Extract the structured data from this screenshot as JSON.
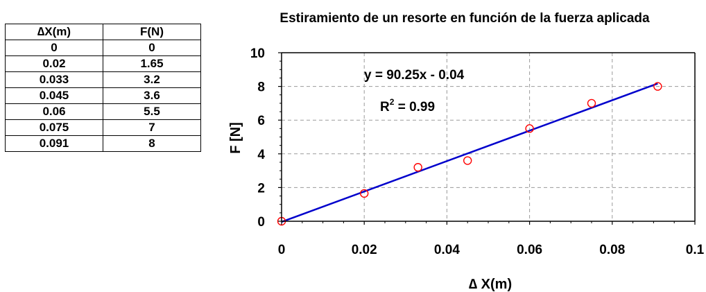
{
  "table": {
    "headers": [
      "∆X(m)",
      "F(N)"
    ],
    "rows": [
      [
        "0",
        "0"
      ],
      [
        "0.02",
        "1.65"
      ],
      [
        "0.033",
        "3.2"
      ],
      [
        "0.045",
        "3.6"
      ],
      [
        "0.06",
        "5.5"
      ],
      [
        "0.075",
        "7"
      ],
      [
        "0.091",
        "8"
      ]
    ]
  },
  "chart_data": {
    "type": "scatter",
    "title": "Estiramiento de un resorte en función de la fuerza aplicada",
    "xlabel": "∆ X(m)",
    "ylabel": "F [N]",
    "xlim": [
      0,
      0.1
    ],
    "ylim": [
      0,
      10
    ],
    "x_ticks": [
      "0",
      "0.02",
      "0.04",
      "0.06",
      "0.08",
      "0.1"
    ],
    "y_ticks": [
      "0",
      "2",
      "4",
      "6",
      "8",
      "10"
    ],
    "grid": true,
    "series": [
      {
        "x": [
          0,
          0.02,
          0.033,
          0.045,
          0.06,
          0.075,
          0.091
        ],
        "y": [
          0,
          1.65,
          3.2,
          3.6,
          5.5,
          7,
          8
        ],
        "marker": "circle-open",
        "color": "#ff0000"
      }
    ],
    "trendline": {
      "slope": 90.25,
      "intercept": -0.04,
      "color": "#0000cc",
      "equation": "y = 90.25x - 0.04",
      "r2_prefix": "R",
      "r2_sup": "2",
      "r2_value": " = 0.99"
    }
  }
}
